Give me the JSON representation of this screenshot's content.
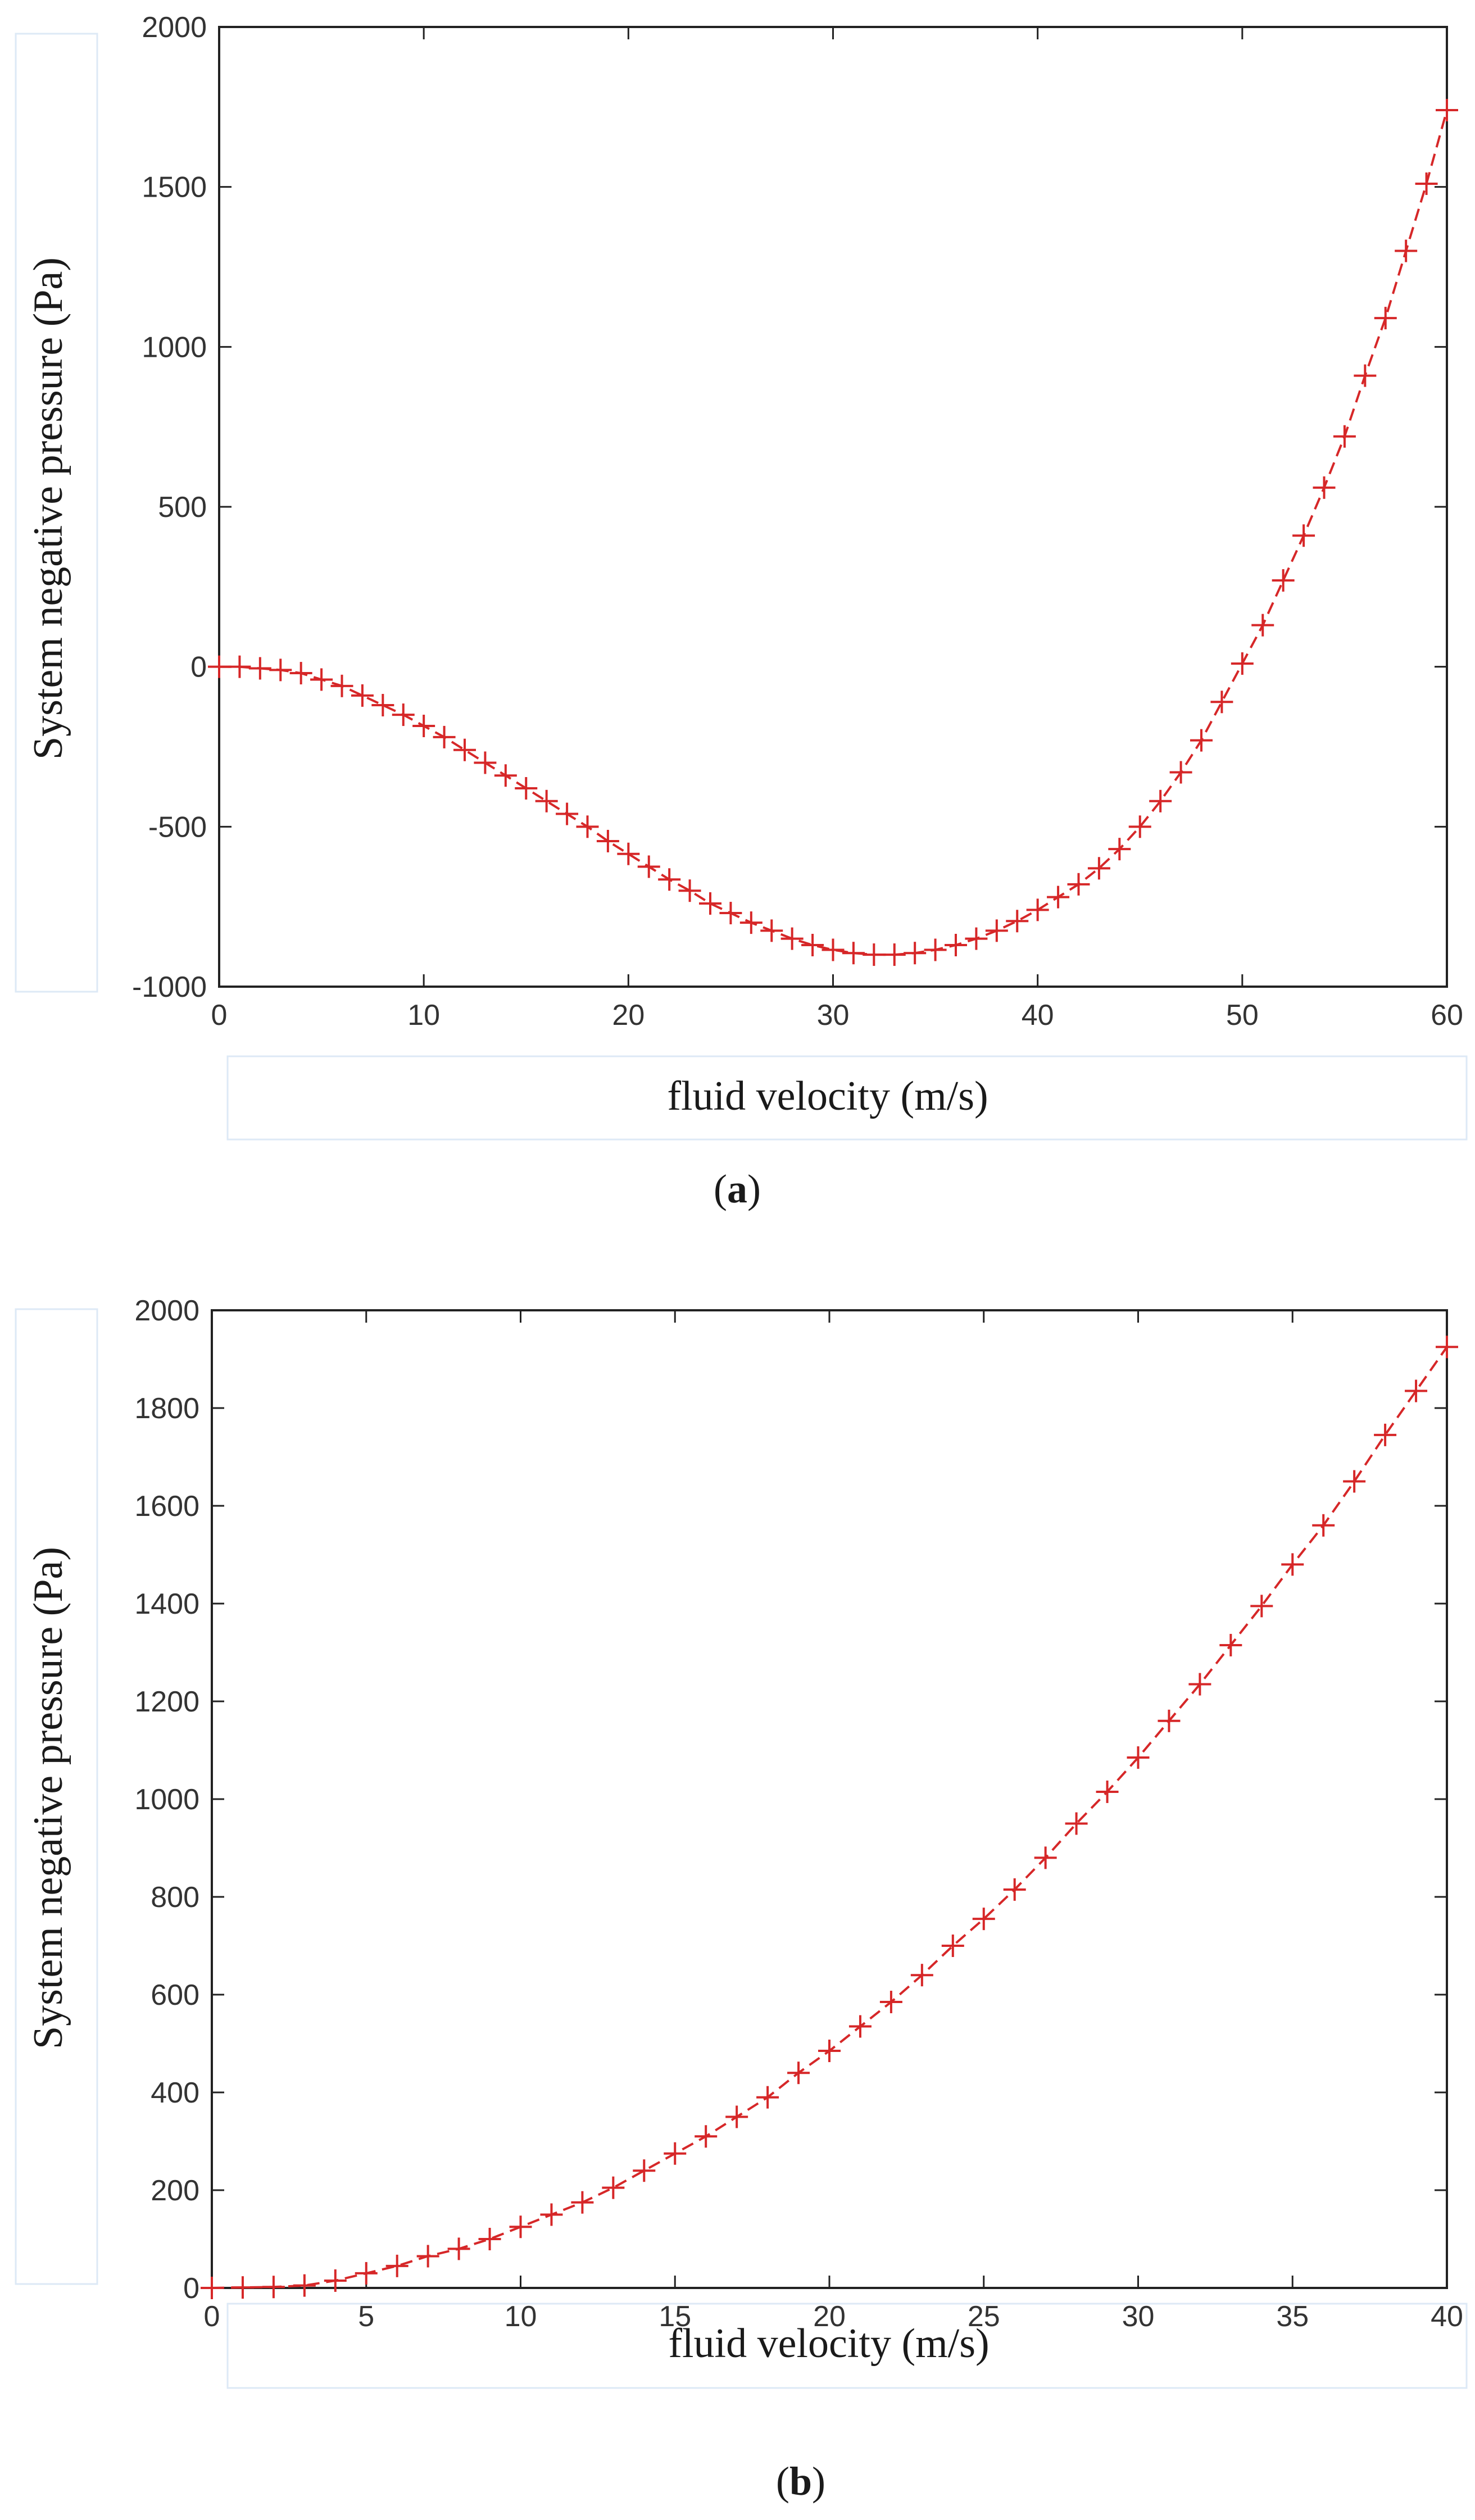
{
  "colors": {
    "series": "#d62728",
    "axis": "#222222",
    "tick_text": "#333333"
  },
  "chart_data": [
    {
      "type": "line",
      "caption": "(a)",
      "caption_letter": "a",
      "xlabel": "fluid velocity (m/s)",
      "ylabel": "System negative pressure (Pa)",
      "xlim": [
        0,
        60
      ],
      "ylim": [
        -1000,
        2000
      ],
      "xticks": [
        0,
        10,
        20,
        30,
        40,
        50,
        60
      ],
      "yticks": [
        -1000,
        -500,
        0,
        500,
        1000,
        1500,
        2000
      ],
      "series": [
        {
          "name": "negative pressure",
          "marker": "+",
          "linestyle": "dashed",
          "x": [
            0,
            1,
            2,
            3,
            4,
            5,
            6,
            7,
            8,
            9,
            10,
            11,
            12,
            13,
            14,
            15,
            16,
            17,
            18,
            19,
            20,
            21,
            22,
            23,
            24,
            25,
            26,
            27,
            28,
            29,
            30,
            31,
            32,
            33,
            34,
            35,
            36,
            37,
            38,
            39,
            40,
            41,
            42,
            43,
            44,
            45,
            46,
            47,
            48,
            49,
            50,
            51,
            52,
            53,
            54,
            55,
            56,
            57,
            58,
            59,
            60
          ],
          "y": [
            0,
            0,
            -5,
            -10,
            -20,
            -40,
            -60,
            -90,
            -120,
            -150,
            -185,
            -220,
            -260,
            -300,
            -340,
            -380,
            -420,
            -460,
            -500,
            -545,
            -585,
            -625,
            -665,
            -700,
            -740,
            -770,
            -800,
            -825,
            -850,
            -870,
            -885,
            -895,
            -900,
            -900,
            -895,
            -885,
            -870,
            -850,
            -825,
            -795,
            -760,
            -720,
            -680,
            -630,
            -570,
            -500,
            -420,
            -330,
            -230,
            -110,
            10,
            130,
            270,
            410,
            560,
            720,
            910,
            1090,
            1300,
            1510,
            1740
          ]
        }
      ]
    },
    {
      "type": "line",
      "caption": "(b)",
      "caption_letter": "b",
      "xlabel": "fluid velocity (m/s)",
      "ylabel": "System negative pressure (Pa)",
      "xlim": [
        0,
        40
      ],
      "ylim": [
        0,
        2000
      ],
      "xticks": [
        0,
        5,
        10,
        15,
        20,
        25,
        30,
        35,
        40
      ],
      "yticks": [
        0,
        200,
        400,
        600,
        800,
        1000,
        1200,
        1400,
        1600,
        1800,
        2000
      ],
      "series": [
        {
          "name": "negative pressure",
          "marker": "+",
          "linestyle": "dashed",
          "x": [
            0,
            1,
            2,
            3,
            4,
            5,
            6,
            7,
            8,
            9,
            10,
            11,
            12,
            13,
            14,
            15,
            16,
            17,
            18,
            19,
            20,
            21,
            22,
            23,
            24,
            25,
            26,
            27,
            28,
            29,
            30,
            31,
            32,
            33,
            34,
            35,
            36,
            37,
            38,
            39,
            40
          ],
          "y": [
            0,
            1,
            2,
            5,
            15,
            30,
            45,
            65,
            80,
            100,
            125,
            150,
            175,
            205,
            240,
            275,
            310,
            350,
            390,
            440,
            485,
            535,
            585,
            640,
            700,
            755,
            815,
            880,
            950,
            1015,
            1085,
            1160,
            1235,
            1315,
            1395,
            1480,
            1560,
            1650,
            1745,
            1835,
            1925
          ]
        }
      ]
    }
  ]
}
